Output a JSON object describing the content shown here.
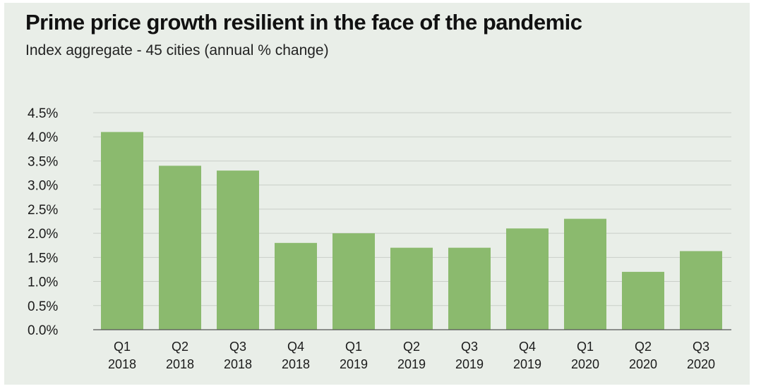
{
  "header": {
    "title": "Prime price growth resilient in the face of the pandemic",
    "subtitle": "Index aggregate - 45 cities (annual % change)"
  },
  "chart_data": {
    "type": "bar",
    "title": "Prime price growth resilient in the face of the pandemic",
    "subtitle": "Index aggregate - 45 cities (annual % change)",
    "xlabel": "",
    "ylabel": "",
    "categories": [
      [
        "Q1",
        "2018"
      ],
      [
        "Q2",
        "2018"
      ],
      [
        "Q3",
        "2018"
      ],
      [
        "Q4",
        "2018"
      ],
      [
        "Q1",
        "2019"
      ],
      [
        "Q2",
        "2019"
      ],
      [
        "Q3",
        "2019"
      ],
      [
        "Q4",
        "2019"
      ],
      [
        "Q1",
        "2020"
      ],
      [
        "Q2",
        "2020"
      ],
      [
        "Q3",
        "2020"
      ]
    ],
    "values": [
      4.1,
      3.4,
      3.3,
      1.8,
      2.0,
      1.7,
      1.7,
      2.1,
      2.3,
      1.2,
      1.63
    ],
    "ylim": [
      0,
      4.5
    ],
    "yticks": [
      0,
      0.5,
      1.0,
      1.5,
      2.0,
      2.5,
      3.0,
      3.5,
      4.0,
      4.5
    ],
    "ytick_labels": [
      "0.0%",
      "0.5%",
      "1.0%",
      "1.5%",
      "2.0%",
      "2.5%",
      "3.0%",
      "3.5%",
      "4.0%",
      "4.5%"
    ],
    "grid": true,
    "legend": "none",
    "colors": {
      "bar": "#8bba6e",
      "grid": "#c9cfc8",
      "axis": "#555555",
      "background": "#e9eee8"
    }
  }
}
